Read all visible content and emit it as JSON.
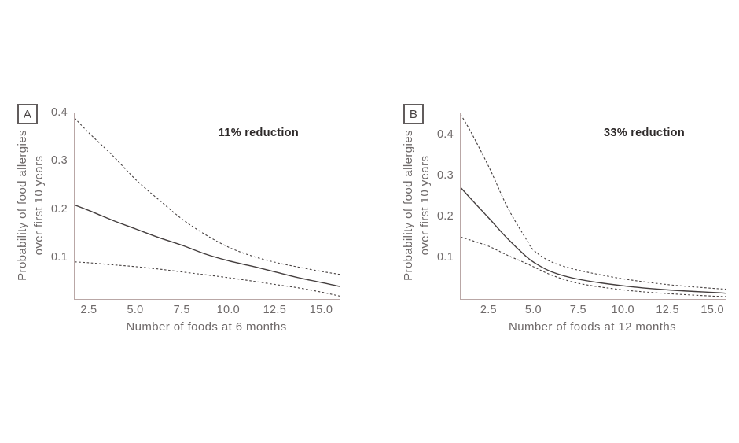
{
  "figure": {
    "background": "#ffffff",
    "description_visible_text_only": true
  },
  "colors": {
    "curve": "#453f3f",
    "plot_border": "#b9a7a6",
    "axis_text": "#6e6969",
    "annotation_text": "#2e2a2a",
    "panel_label_border": "#615c5c"
  },
  "chart_data": [
    {
      "type": "line",
      "panel_label": "A",
      "annotation": "11% reduction",
      "xlabel": "Number of foods at 6 months",
      "ylabel": "Probability of food allergies over first 10 years",
      "ylabel_lines": [
        "Probability of food allergies",
        "over first 10 years"
      ],
      "xlim": [
        1.7,
        15.95
      ],
      "ylim": [
        0.015,
        0.4
      ],
      "grid": false,
      "legend": "none",
      "x_ticks": [
        {
          "value": 2.5,
          "label": "2.5"
        },
        {
          "value": 5.0,
          "label": "5.0"
        },
        {
          "value": 7.5,
          "label": "7.5"
        },
        {
          "value": 10.0,
          "label": "10.0"
        },
        {
          "value": 12.5,
          "label": "12.5"
        },
        {
          "value": 15.0,
          "label": "15.0"
        }
      ],
      "y_ticks": [
        {
          "value": 0.4,
          "label": "0.4"
        },
        {
          "value": 0.3,
          "label": "0.3"
        },
        {
          "value": 0.2,
          "label": "0.2"
        },
        {
          "value": 0.1,
          "label": "0.1"
        }
      ],
      "series": [
        {
          "name": "upper confidence bound",
          "style": "dashed",
          "points": [
            [
              1.7,
              0.39
            ],
            [
              2.5,
              0.358
            ],
            [
              3.75,
              0.312
            ],
            [
              5,
              0.262
            ],
            [
              6.25,
              0.22
            ],
            [
              7.5,
              0.18
            ],
            [
              8.75,
              0.148
            ],
            [
              10,
              0.122
            ],
            [
              11.25,
              0.104
            ],
            [
              12.5,
              0.091
            ],
            [
              13.75,
              0.081
            ],
            [
              15,
              0.072
            ],
            [
              15.95,
              0.066
            ]
          ]
        },
        {
          "name": "mean probability",
          "style": "solid",
          "points": [
            [
              1.7,
              0.21
            ],
            [
              2.5,
              0.198
            ],
            [
              3.75,
              0.178
            ],
            [
              5,
              0.16
            ],
            [
              6.25,
              0.142
            ],
            [
              7.5,
              0.126
            ],
            [
              8.75,
              0.108
            ],
            [
              10,
              0.094
            ],
            [
              11.25,
              0.083
            ],
            [
              12.5,
              0.071
            ],
            [
              13.75,
              0.059
            ],
            [
              15,
              0.049
            ],
            [
              15.95,
              0.041
            ]
          ]
        },
        {
          "name": "lower confidence bound",
          "style": "dashed",
          "points": [
            [
              1.7,
              0.092
            ],
            [
              2.5,
              0.09
            ],
            [
              3.75,
              0.086
            ],
            [
              5,
              0.082
            ],
            [
              6.25,
              0.077
            ],
            [
              7.5,
              0.071
            ],
            [
              10,
              0.059
            ],
            [
              12.5,
              0.045
            ],
            [
              13.75,
              0.038
            ],
            [
              15,
              0.029
            ],
            [
              15.95,
              0.021
            ]
          ]
        }
      ]
    },
    {
      "type": "line",
      "panel_label": "B",
      "annotation": "33% reduction",
      "xlabel": "Number of foods at 12 months",
      "ylabel": "Probability of food allergies over first 10 years",
      "ylabel_lines": [
        "Probability of food allergies",
        "over first 10 years"
      ],
      "xlim": [
        0.9,
        15.7
      ],
      "ylim": [
        0.0,
        0.453
      ],
      "grid": false,
      "legend": "none",
      "x_ticks": [
        {
          "value": 2.5,
          "label": "2.5"
        },
        {
          "value": 5.0,
          "label": "5.0"
        },
        {
          "value": 7.5,
          "label": "7.5"
        },
        {
          "value": 10.0,
          "label": "10.0"
        },
        {
          "value": 12.5,
          "label": "12.5"
        },
        {
          "value": 15.0,
          "label": "15.0"
        }
      ],
      "y_ticks": [
        {
          "value": 0.4,
          "label": "0.4"
        },
        {
          "value": 0.3,
          "label": "0.3"
        },
        {
          "value": 0.2,
          "label": "0.2"
        },
        {
          "value": 0.1,
          "label": "0.1"
        }
      ],
      "series": [
        {
          "name": "upper confidence bound",
          "style": "dashed",
          "points": [
            [
              0.9,
              0.45
            ],
            [
              1.5,
              0.405
            ],
            [
              2.5,
              0.32
            ],
            [
              3.5,
              0.225
            ],
            [
              4.5,
              0.15
            ],
            [
              5,
              0.118
            ],
            [
              6,
              0.09
            ],
            [
              7.5,
              0.07
            ],
            [
              10,
              0.049
            ],
            [
              12.5,
              0.035
            ],
            [
              15,
              0.026
            ],
            [
              15.7,
              0.024
            ]
          ]
        },
        {
          "name": "mean probability",
          "style": "solid",
          "points": [
            [
              0.9,
              0.272
            ],
            [
              1.5,
              0.243
            ],
            [
              2.5,
              0.196
            ],
            [
              3.5,
              0.148
            ],
            [
              4.5,
              0.106
            ],
            [
              5,
              0.089
            ],
            [
              6,
              0.066
            ],
            [
              7.5,
              0.048
            ],
            [
              10,
              0.032
            ],
            [
              12.5,
              0.022
            ],
            [
              15,
              0.016
            ],
            [
              15.7,
              0.014
            ]
          ]
        },
        {
          "name": "lower confidence bound",
          "style": "dashed",
          "points": [
            [
              0.9,
              0.151
            ],
            [
              1.5,
              0.143
            ],
            [
              2.5,
              0.128
            ],
            [
              3.5,
              0.107
            ],
            [
              4.5,
              0.088
            ],
            [
              5,
              0.078
            ],
            [
              6,
              0.058
            ],
            [
              7.5,
              0.038
            ],
            [
              10,
              0.022
            ],
            [
              12.5,
              0.013
            ],
            [
              15,
              0.007
            ],
            [
              15.7,
              0.006
            ]
          ]
        }
      ]
    }
  ]
}
